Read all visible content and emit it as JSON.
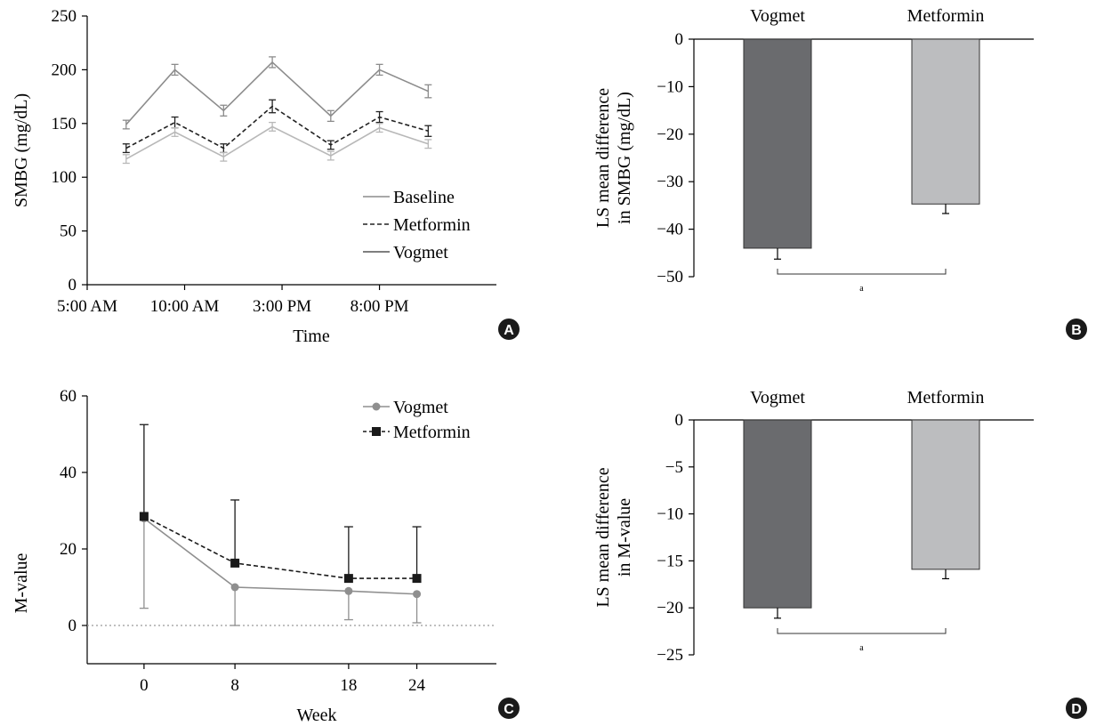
{
  "chart_data": [
    {
      "panel": "A",
      "type": "line",
      "xlabel": "Time",
      "ylabel": "SMBG (mg/dL)",
      "ylim": [
        0,
        250
      ],
      "yticks": [
        0,
        50,
        100,
        150,
        200,
        250
      ],
      "x_tick_labels": [
        "5:00 AM",
        "10:00 AM",
        "3:00 PM",
        "8:00 PM"
      ],
      "x_tick_hours": [
        5,
        10,
        15,
        20
      ],
      "xlim_hours": [
        5,
        26
      ],
      "legend": {
        "position": "bottom-right",
        "entries": [
          "Baseline",
          "Metformin",
          "Vogmet"
        ]
      },
      "x_hours": [
        7,
        9.5,
        12,
        14.5,
        17.5,
        20,
        22.5
      ],
      "series": [
        {
          "name": "Baseline",
          "color": "#8c8c8c",
          "dash": "solid",
          "values": [
            149,
            200,
            162,
            207,
            157,
            200,
            180
          ],
          "errors": [
            4,
            5,
            5,
            5,
            5,
            5,
            6
          ]
        },
        {
          "name": "Metformin",
          "color": "#222222",
          "dash": "dashed",
          "values": [
            127,
            151,
            127,
            166,
            130,
            156,
            143
          ],
          "errors": [
            4,
            5,
            4,
            6,
            4,
            5,
            5
          ]
        },
        {
          "name": "Vogmet",
          "color": "#b8b8b8",
          "dash": "solid",
          "values": [
            117,
            142,
            119,
            147,
            120,
            146,
            131
          ],
          "errors": [
            4,
            4,
            4,
            4,
            4,
            4,
            4
          ]
        }
      ]
    },
    {
      "panel": "B",
      "type": "bar",
      "ylabel": "LS mean difference in SMBG (mg/dL)",
      "ylabel_lines": [
        "LS mean difference",
        "in SMBG (mg/dL)"
      ],
      "ylim": [
        -50,
        0
      ],
      "yticks": [
        0,
        -10,
        -20,
        -30,
        -40,
        -50
      ],
      "categories": [
        "Vogmet",
        "Metformin"
      ],
      "values": [
        -44,
        -34.7
      ],
      "errors": [
        2.3,
        2.0
      ],
      "colors": [
        "#6a6b6e",
        "#bcbdbf"
      ],
      "annotation": "a"
    },
    {
      "panel": "C",
      "type": "line",
      "xlabel": "Week",
      "ylabel": "M-value",
      "ylim": [
        -10,
        60
      ],
      "yticks": [
        0,
        20,
        40,
        60
      ],
      "xticks": [
        0,
        8,
        18,
        24
      ],
      "xlim": [
        -5,
        31
      ],
      "zero_line": true,
      "legend": {
        "position": "top-right",
        "entries": [
          "Vogmet",
          "Metformin"
        ]
      },
      "series": [
        {
          "name": "Vogmet",
          "color": "#8f8f8f",
          "marker": "circle",
          "dash": "solid",
          "x": [
            0,
            8,
            18,
            24
          ],
          "values": [
            28,
            10,
            9,
            8.2
          ],
          "errors": [
            23.5,
            10,
            7.5,
            7.5
          ],
          "error_direction": "down"
        },
        {
          "name": "Metformin",
          "color": "#1a1a1a",
          "marker": "square",
          "dash": "dashed",
          "x": [
            0,
            8,
            18,
            24
          ],
          "values": [
            28.5,
            16.3,
            12.3,
            12.3
          ],
          "errors": [
            24,
            16.5,
            13.5,
            13.5
          ],
          "error_direction": "up"
        }
      ]
    },
    {
      "panel": "D",
      "type": "bar",
      "ylabel": "LS mean difference in M-value",
      "ylabel_lines": [
        "LS mean difference",
        "in M-value"
      ],
      "ylim": [
        -25,
        0
      ],
      "yticks": [
        0,
        -5,
        -10,
        -15,
        -20,
        -25
      ],
      "categories": [
        "Vogmet",
        "Metformin"
      ],
      "values": [
        -20,
        -15.9
      ],
      "errors": [
        1.1,
        1.0
      ],
      "colors": [
        "#6a6b6e",
        "#bcbdbf"
      ],
      "annotation": "a"
    }
  ]
}
